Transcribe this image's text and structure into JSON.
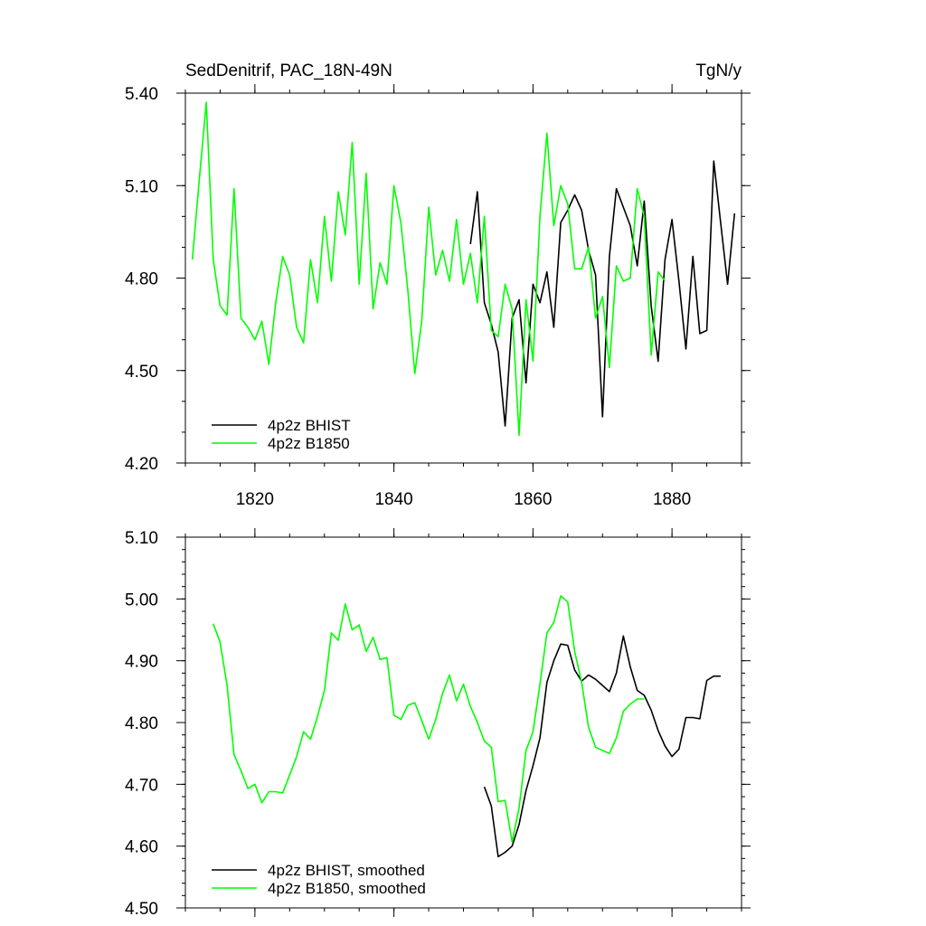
{
  "chart_data": [
    {
      "type": "line",
      "title_left": "SedDenitrif, PAC_18N-49N",
      "title_right": "TgN/y",
      "xlim": [
        1810,
        1890
      ],
      "ylim": [
        4.2,
        5.4
      ],
      "yticks": [
        4.2,
        4.5,
        4.8,
        5.1,
        5.4
      ],
      "ytick_labels": [
        "4.20",
        "4.50",
        "4.80",
        "5.10",
        "5.40"
      ],
      "xticks": [
        1820,
        1840,
        1860,
        1880
      ],
      "xtick_labels": [
        "1820",
        "1840",
        "1860",
        "1880"
      ],
      "legend_position": "bottom-left",
      "series": [
        {
          "name": "4p2z BHIST",
          "color": "#000000",
          "x": [
            1851,
            1852,
            1853,
            1854,
            1855,
            1856,
            1857,
            1858,
            1859,
            1860,
            1861,
            1862,
            1863,
            1864,
            1865,
            1866,
            1867,
            1868,
            1869,
            1870,
            1871,
            1872,
            1873,
            1874,
            1875,
            1876,
            1877,
            1878,
            1879,
            1880,
            1881,
            1882,
            1883,
            1884,
            1885,
            1886,
            1887,
            1888,
            1889
          ],
          "y": [
            4.91,
            5.08,
            4.72,
            4.65,
            4.56,
            4.32,
            4.67,
            4.73,
            4.46,
            4.78,
            4.72,
            4.82,
            4.64,
            4.98,
            5.02,
            5.07,
            5.02,
            4.89,
            4.81,
            4.35,
            4.87,
            5.09,
            5.03,
            4.97,
            4.84,
            5.05,
            4.71,
            4.53,
            4.86,
            4.99,
            4.79,
            4.57,
            4.87,
            4.62,
            4.63,
            5.18,
            4.98,
            4.78,
            5.01
          ]
        },
        {
          "name": "4p2z B1850",
          "color": "#00ff00",
          "x": [
            1811,
            1812,
            1813,
            1814,
            1815,
            1816,
            1817,
            1818,
            1819,
            1820,
            1821,
            1822,
            1823,
            1824,
            1825,
            1826,
            1827,
            1828,
            1829,
            1830,
            1831,
            1832,
            1833,
            1834,
            1835,
            1836,
            1837,
            1838,
            1839,
            1840,
            1841,
            1842,
            1843,
            1844,
            1845,
            1846,
            1847,
            1848,
            1849,
            1850,
            1851,
            1852,
            1853,
            1854,
            1855,
            1856,
            1857,
            1858,
            1859,
            1860,
            1861,
            1862,
            1863,
            1864,
            1865,
            1866,
            1867,
            1868,
            1869,
            1870,
            1871,
            1872,
            1873,
            1874,
            1875,
            1876,
            1877,
            1878,
            1879
          ],
          "y": [
            4.86,
            5.12,
            5.37,
            4.86,
            4.71,
            4.68,
            5.09,
            4.67,
            4.64,
            4.6,
            4.66,
            4.52,
            4.72,
            4.87,
            4.81,
            4.64,
            4.59,
            4.86,
            4.72,
            5.0,
            4.79,
            5.08,
            4.94,
            5.24,
            4.78,
            5.14,
            4.7,
            4.85,
            4.78,
            5.1,
            4.98,
            4.76,
            4.49,
            4.66,
            5.03,
            4.81,
            4.89,
            4.79,
            4.99,
            4.78,
            4.88,
            4.72,
            5.0,
            4.63,
            4.61,
            4.78,
            4.7,
            4.29,
            4.73,
            4.53,
            5.0,
            5.27,
            4.97,
            5.1,
            5.04,
            4.83,
            4.83,
            4.9,
            4.67,
            4.74,
            4.51,
            4.84,
            4.79,
            4.8,
            5.09,
            5.0,
            4.55,
            4.82,
            4.79
          ]
        }
      ]
    },
    {
      "type": "line",
      "xlim": [
        1810,
        1890
      ],
      "ylim": [
        4.5,
        5.1
      ],
      "yticks": [
        4.5,
        4.6,
        4.7,
        4.8,
        4.9,
        5.0,
        5.1
      ],
      "ytick_labels": [
        "4.50",
        "4.60",
        "4.70",
        "4.80",
        "4.90",
        "5.00",
        "5.10"
      ],
      "xticks": [
        1820,
        1840,
        1860,
        1880
      ],
      "legend_position": "bottom-left",
      "series": [
        {
          "name": "4p2z BHIST, smoothed",
          "color": "#000000",
          "x": [
            1853,
            1854,
            1855,
            1856,
            1857,
            1858,
            1859,
            1860,
            1861,
            1862,
            1863,
            1864,
            1865,
            1866,
            1867,
            1868,
            1869,
            1870,
            1871,
            1872,
            1873,
            1874,
            1875,
            1876,
            1877,
            1878,
            1879,
            1880,
            1881,
            1882,
            1883,
            1884,
            1885,
            1886,
            1887
          ],
          "y": [
            4.696,
            4.665,
            4.583,
            4.59,
            4.6,
            4.635,
            4.69,
            4.73,
            4.775,
            4.865,
            4.9,
            4.927,
            4.925,
            4.885,
            4.867,
            4.877,
            4.87,
            4.86,
            4.85,
            4.88,
            4.94,
            4.89,
            4.852,
            4.844,
            4.82,
            4.787,
            4.762,
            4.745,
            4.757,
            4.808,
            4.808,
            4.806,
            4.868,
            4.875,
            4.875
          ]
        },
        {
          "name": "4p2z B1850, smoothed",
          "color": "#00ff00",
          "x": [
            1814,
            1815,
            1816,
            1817,
            1818,
            1819,
            1820,
            1821,
            1822,
            1823,
            1824,
            1825,
            1826,
            1827,
            1828,
            1829,
            1830,
            1831,
            1832,
            1833,
            1834,
            1835,
            1836,
            1837,
            1838,
            1839,
            1840,
            1841,
            1842,
            1843,
            1844,
            1845,
            1846,
            1847,
            1848,
            1849,
            1850,
            1851,
            1852,
            1853,
            1854,
            1855,
            1856,
            1857,
            1858,
            1859,
            1860,
            1861,
            1862,
            1863,
            1864,
            1865,
            1866,
            1867,
            1868,
            1869,
            1870,
            1871,
            1872,
            1873,
            1874,
            1875,
            1876
          ],
          "y": [
            4.96,
            4.93,
            4.86,
            4.748,
            4.722,
            4.693,
            4.7,
            4.67,
            4.688,
            4.688,
            4.686,
            4.715,
            4.745,
            4.785,
            4.773,
            4.81,
            4.852,
            4.945,
            4.933,
            4.992,
            4.95,
            4.958,
            4.915,
            4.938,
            4.902,
            4.905,
            4.812,
            4.805,
            4.828,
            4.832,
            4.803,
            4.773,
            4.805,
            4.847,
            4.877,
            4.835,
            4.862,
            4.826,
            4.8,
            4.77,
            4.76,
            4.672,
            4.674,
            4.607,
            4.662,
            4.755,
            4.785,
            4.862,
            4.945,
            4.962,
            5.005,
            4.995,
            4.915,
            4.865,
            4.792,
            4.76,
            4.755,
            4.75,
            4.775,
            4.818,
            4.83,
            4.838,
            4.838
          ]
        }
      ]
    }
  ]
}
